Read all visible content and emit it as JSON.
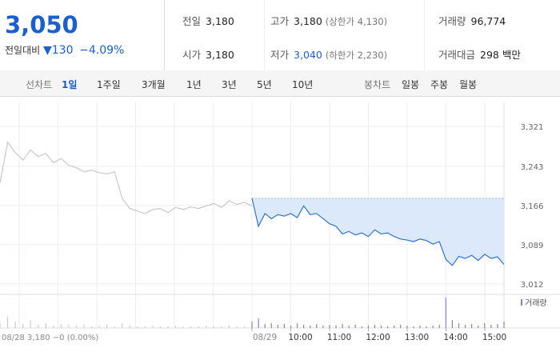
{
  "quote": {
    "price": "3,050",
    "change_label": "전일대비",
    "change": "▼130",
    "change_pct": "−4.09%"
  },
  "summary": {
    "rows": [
      [
        {
          "label": "전일",
          "value": "3,180"
        },
        {
          "label": "고가",
          "value": "3,180",
          "note": "(상한가 4,130)"
        },
        {
          "label": "거래량",
          "value": "96,774"
        }
      ],
      [
        {
          "label": "시가",
          "value": "3,180"
        },
        {
          "label": "저가",
          "value": "3,040",
          "note": "(하한가 2,230)"
        },
        {
          "label": "거래대금",
          "value": "298 백만"
        }
      ]
    ]
  },
  "tabs": {
    "line_label": "선차트",
    "line": [
      "1일",
      "1주일",
      "3개월",
      "1년",
      "3년",
      "5년",
      "10년"
    ],
    "candle_label": "봉차트",
    "candle": [
      "일봉",
      "주봉",
      "월봉"
    ]
  },
  "chart": {
    "type": "line",
    "ylim": [
      2996,
      3373
    ],
    "yticks": [
      {
        "value": 3321,
        "label": "3,321"
      },
      {
        "value": 3243,
        "label": "3,243"
      },
      {
        "value": 3166,
        "label": "3,166"
      },
      {
        "value": 3089,
        "label": "3,089"
      },
      {
        "value": 3012,
        "label": "3,012"
      }
    ],
    "xticks": [
      "08/29",
      "10:00",
      "11:00",
      "12:00",
      "13:00",
      "14:00",
      "15:00"
    ],
    "series": [
      {
        "name": "08/28",
        "color": "#c8c8c8",
        "values": [
          3210,
          3290,
          3270,
          3255,
          3275,
          3262,
          3268,
          3250,
          3258,
          3245,
          3240,
          3232,
          3235,
          3230,
          3228,
          3232,
          3180,
          3160,
          3155,
          3150,
          3158,
          3160,
          3152,
          3162,
          3158,
          3163,
          3160,
          3165,
          3170,
          3162,
          3175,
          3168,
          3172,
          3165
        ],
        "volume": [
          6,
          14,
          8,
          5,
          10,
          4,
          6,
          3,
          5,
          4,
          3,
          4,
          2,
          3,
          4,
          2,
          6,
          3,
          2,
          2,
          3,
          2,
          2,
          3,
          2,
          2,
          2,
          3,
          2,
          2,
          3,
          2,
          2,
          4
        ]
      },
      {
        "name": "08/29",
        "color": "#2f74d6",
        "values": [
          3180,
          3125,
          3150,
          3140,
          3148,
          3145,
          3150,
          3142,
          3165,
          3148,
          3150,
          3140,
          3130,
          3125,
          3110,
          3115,
          3108,
          3112,
          3105,
          3118,
          3110,
          3112,
          3105,
          3100,
          3098,
          3095,
          3100,
          3097,
          3090,
          3095,
          3060,
          3048,
          3066,
          3062,
          3068,
          3058,
          3070,
          3062,
          3065,
          3050
        ],
        "volume": [
          8,
          12,
          5,
          6,
          4,
          5,
          3,
          6,
          4,
          3,
          5,
          3,
          4,
          3,
          5,
          3,
          4,
          2,
          3,
          4,
          3,
          2,
          3,
          4,
          3,
          2,
          3,
          2,
          3,
          4,
          38,
          10,
          6,
          4,
          5,
          3,
          6,
          4,
          5,
          8
        ]
      }
    ],
    "legend": "거래량",
    "footer": "08/28  3,180 −0 (0.00%)"
  }
}
